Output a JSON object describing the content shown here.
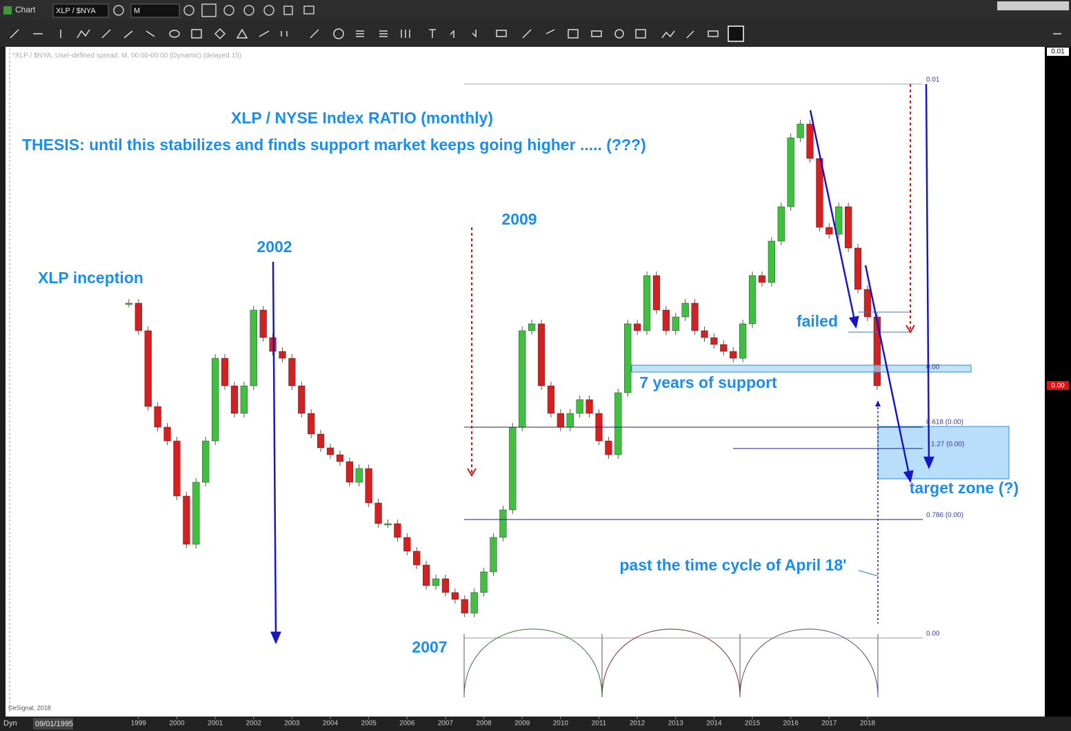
{
  "window": {
    "title": "Chart",
    "symbol": "XLP / $NYA",
    "interval": "M"
  },
  "chart_data": {
    "type": "candlestick",
    "info": "*XLP / $NYA, User-defined spread, M, 00:00-00:00 (Dynamic) (delayed 15)",
    "title": "XLP / NYSE Index RATIO (monthly)",
    "subtitle": "THESIS: until this stabilizes and finds support market keeps going higher ..... (???)",
    "annotations": {
      "inception": "XLP inception",
      "y2002": "2002",
      "y2009": "2009",
      "y2007": "2007",
      "failed": "failed",
      "support": "7 years of support",
      "target": "target zone (?)",
      "cycle": "past the time cycle of April 18'"
    },
    "levels": {
      "top": "0.01",
      "support": "0.00",
      "fib618": "0.618 (0.00)",
      "fib127": "1.27 (0.00)",
      "fib786": "0.786 (0.00)",
      "cycle": "0.00"
    },
    "right_axis_labels": [
      "0.01",
      "0.00"
    ],
    "copyright": "©eSignal, 2018",
    "status": {
      "mode": "Dyn",
      "date": "09/01/1995"
    },
    "colors": {
      "up": "#3ec13e",
      "down": "#d42020"
    },
    "x": [
      1998.75,
      1999,
      1999.25,
      1999.5,
      1999.75,
      2000,
      2000.25,
      2000.5,
      2000.75,
      2001,
      2001.25,
      2001.5,
      2001.75,
      2002,
      2002.25,
      2002.5,
      2002.75,
      2003,
      2003.25,
      2003.5,
      2003.75,
      2004,
      2004.25,
      2004.5,
      2004.75,
      2005,
      2005.25,
      2005.5,
      2005.75,
      2006,
      2006.25,
      2006.5,
      2006.75,
      2007,
      2007.25,
      2007.5,
      2007.75,
      2008,
      2008.25,
      2008.5,
      2008.75,
      2009,
      2009.25,
      2009.5,
      2009.75,
      2010,
      2010.25,
      2010.5,
      2010.75,
      2011,
      2011.25,
      2011.5,
      2011.75,
      2012,
      2012.25,
      2012.5,
      2012.75,
      2013,
      2013.25,
      2013.5,
      2013.75,
      2014,
      2014.25,
      2014.5,
      2014.75,
      2015,
      2015.25,
      2015.5,
      2015.75,
      2016,
      2016.25,
      2016.5,
      2016.75,
      2017,
      2017.25,
      2017.5,
      2017.75,
      2018,
      2018.25
    ],
    "values": [
      600,
      560,
      450,
      420,
      400,
      320,
      250,
      340,
      400,
      520,
      480,
      440,
      480,
      590,
      550,
      530,
      520,
      480,
      440,
      410,
      390,
      380,
      370,
      340,
      360,
      310,
      280,
      280,
      260,
      240,
      220,
      190,
      200,
      180,
      170,
      150,
      180,
      210,
      260,
      300,
      420,
      560,
      570,
      480,
      440,
      420,
      440,
      460,
      440,
      400,
      380,
      470,
      570,
      560,
      640,
      590,
      560,
      580,
      600,
      560,
      550,
      540,
      530,
      520,
      570,
      640,
      630,
      690,
      740,
      840,
      860,
      810,
      710,
      700,
      740,
      680,
      620,
      580,
      480
    ],
    "xlim": [
      1995.57,
      2022.62
    ],
    "ylim": [
      0,
      965
    ],
    "xticks": [
      1999,
      2000,
      2001,
      2002,
      2003,
      2004,
      2005,
      2006,
      2007,
      2008,
      2009,
      2010,
      2011,
      2012,
      2013,
      2014,
      2015,
      2016,
      2017,
      2018
    ]
  }
}
